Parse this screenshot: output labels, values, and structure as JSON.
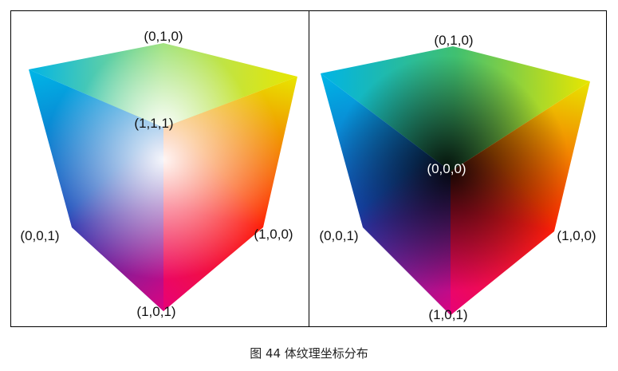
{
  "left_panel": {
    "labels": {
      "top": "(0,1,0)",
      "center": "(1,1,1)",
      "left": "(0,0,1)",
      "right": "(1,0,0)",
      "bottom": "(1,0,1)"
    }
  },
  "right_panel": {
    "labels": {
      "top": "(0,1,0)",
      "center": "(0,0,0)",
      "left": "(0,0,1)",
      "right": "(1,0,0)",
      "bottom": "(1,0,1)"
    }
  },
  "caption": "图 44 体纹理坐标分布",
  "colors": {
    "cyan": "#00b4e6",
    "yellow": "#e8e600",
    "green": "#4cc864",
    "blue": "#1a3cb4",
    "red": "#ff2000",
    "magenta": "#e6007e",
    "white": "#ffffff",
    "black": "#000000"
  }
}
